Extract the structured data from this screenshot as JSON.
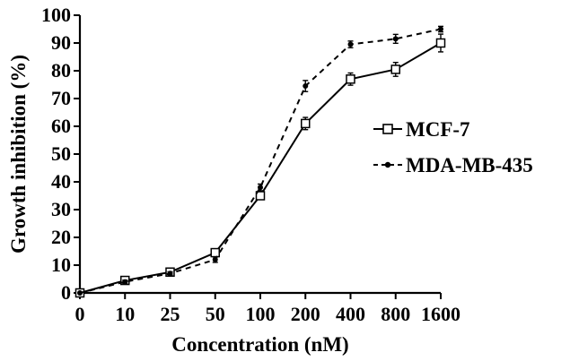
{
  "chart_data": {
    "type": "line",
    "title": "",
    "xlabel": "Concentration (nM)",
    "ylabel": "Growth inhibition (%)",
    "categories": [
      "0",
      "10",
      "25",
      "50",
      "100",
      "200",
      "400",
      "800",
      "1600"
    ],
    "ylim": [
      0,
      100
    ],
    "yticks": [
      "0",
      "10",
      "20",
      "30",
      "40",
      "50",
      "60",
      "70",
      "80",
      "90",
      "100"
    ],
    "grid": false,
    "legend_position": "right",
    "series": [
      {
        "name": "MCF-7",
        "values": [
          0,
          4.5,
          7.5,
          14.5,
          35,
          61,
          77,
          80.5,
          90
        ],
        "errors": [
          0,
          0.8,
          0.8,
          1.0,
          1.2,
          2.2,
          2.2,
          2.5,
          3.2
        ],
        "style": "solid",
        "marker": "open-square",
        "color": "#000000"
      },
      {
        "name": "MDA-MB-435",
        "values": [
          0,
          4,
          7,
          12,
          38,
          74.5,
          89.5,
          91.5,
          95
        ],
        "errors": [
          0,
          0.6,
          0.6,
          1.0,
          1.2,
          2.0,
          1.2,
          1.6,
          1.0
        ],
        "style": "dashed",
        "marker": "filled-circle",
        "color": "#000000"
      }
    ]
  }
}
